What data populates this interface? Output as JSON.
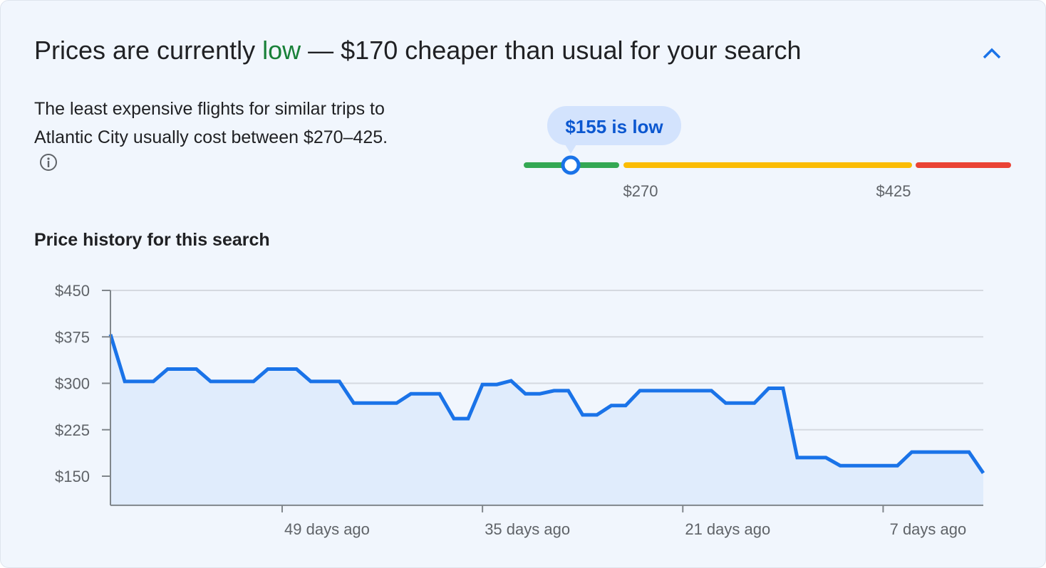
{
  "header": {
    "title_prefix": "Prices are currently ",
    "title_level": "low",
    "title_suffix": " — $170 cheaper than usual for your search",
    "collapse_icon": "chevron-up-icon"
  },
  "summary": {
    "text": "The least expensive flights for similar trips to Atlantic City usually cost between $270–425.",
    "info_icon": "info-icon"
  },
  "price_range": {
    "current_label": "$155 is low",
    "current_price": 155,
    "low_threshold": 270,
    "high_threshold": 425,
    "low_label": "$270",
    "high_label": "$425",
    "colors": {
      "low": "#34a853",
      "typical": "#fbbc04",
      "high": "#ea4335",
      "marker": "#1a73e8"
    }
  },
  "history": {
    "heading": "Price history for this search"
  },
  "chart_data": {
    "type": "area",
    "title": "",
    "xlabel": "",
    "ylabel": "",
    "x_unit": "days ago",
    "xlim": [
      61,
      0
    ],
    "ylim": [
      103,
      450
    ],
    "grid": true,
    "yticks": [
      450,
      375,
      300,
      225,
      150
    ],
    "ytick_labels": [
      "$450",
      "$375",
      "$300",
      "$225",
      "$150"
    ],
    "xticks": [
      49,
      35,
      21,
      7
    ],
    "xtick_labels": [
      "49 days ago",
      "35 days ago",
      "21 days ago",
      "7 days ago"
    ],
    "line_color": "#1a73e8",
    "fill_color": "#e0ecfc",
    "points": [
      [
        61,
        379
      ],
      [
        60,
        303
      ],
      [
        58,
        303
      ],
      [
        57,
        323
      ],
      [
        55,
        323
      ],
      [
        54,
        303
      ],
      [
        51,
        303
      ],
      [
        50,
        323
      ],
      [
        48,
        323
      ],
      [
        47,
        303
      ],
      [
        45,
        303
      ],
      [
        44,
        268
      ],
      [
        41,
        268
      ],
      [
        40,
        283
      ],
      [
        38,
        283
      ],
      [
        37,
        243
      ],
      [
        36,
        243
      ],
      [
        35,
        298
      ],
      [
        34,
        298
      ],
      [
        33,
        304
      ],
      [
        32,
        283
      ],
      [
        31,
        283
      ],
      [
        30,
        288
      ],
      [
        29,
        288
      ],
      [
        28,
        249
      ],
      [
        27,
        249
      ],
      [
        26,
        264
      ],
      [
        25,
        264
      ],
      [
        24,
        288
      ],
      [
        19,
        288
      ],
      [
        18,
        268
      ],
      [
        16,
        268
      ],
      [
        15,
        292
      ],
      [
        14,
        292
      ],
      [
        13,
        180
      ],
      [
        11,
        180
      ],
      [
        10,
        167
      ],
      [
        6,
        167
      ],
      [
        5,
        189
      ],
      [
        1,
        189
      ],
      [
        0,
        155
      ]
    ]
  }
}
